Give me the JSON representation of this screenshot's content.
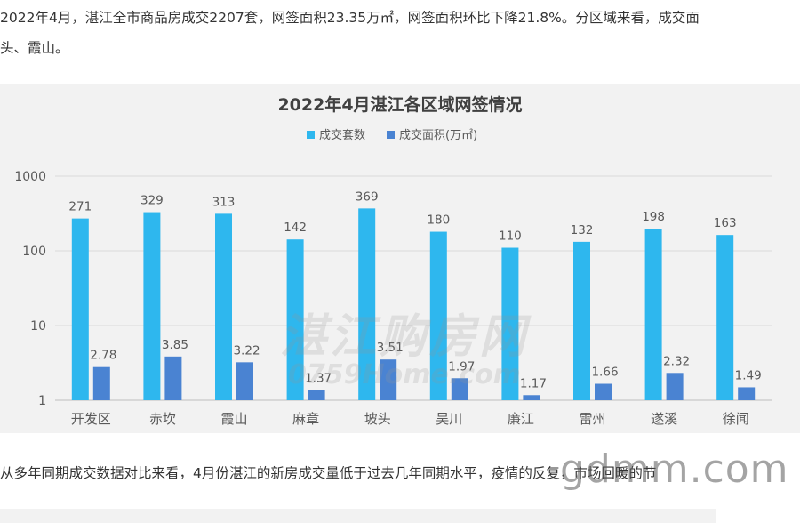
{
  "article": {
    "para1_line1": "2022年4月，湛江全市商品房成交2207套，网签面积23.35万㎡，网签面积环比下降21.8%。分区域来看，成交面",
    "para1_line2": "头、霞山。",
    "para2": "从多年同期成交数据对比来看，4月份湛江的新房成交量低于过去几年同期水平，疫情的反复，市场回暖的节"
  },
  "watermark": {
    "line1": "湛江购房网",
    "line2": "0759Home.com"
  },
  "site_watermark": "gdmm.com",
  "colors": {
    "series1": "#2eb7ee",
    "series2": "#4a83d2",
    "panel_bg": "#f2f2f2",
    "grid": "#d9d9d9",
    "text": "#595959",
    "title": "#404040"
  },
  "chart_data": {
    "type": "bar",
    "title": "2022年4月湛江各区域网签情况",
    "yscale": "log",
    "ylim": [
      1,
      1000
    ],
    "yticks": [
      "1",
      "10",
      "100",
      "1000"
    ],
    "legend_position": "top-center",
    "grid": true,
    "categories": [
      "开发区",
      "赤坎",
      "霞山",
      "麻章",
      "坡头",
      "吴川",
      "廉江",
      "雷州",
      "遂溪",
      "徐闻"
    ],
    "series": [
      {
        "name": "成交套数",
        "color": "#2eb7ee",
        "values": [
          271,
          329,
          313,
          142,
          369,
          180,
          110,
          132,
          198,
          163
        ]
      },
      {
        "name": "成交面积(万㎡)",
        "color": "#4a83d2",
        "values": [
          2.78,
          3.85,
          3.22,
          1.37,
          3.51,
          1.97,
          1.17,
          1.66,
          2.32,
          1.49
        ]
      }
    ]
  }
}
